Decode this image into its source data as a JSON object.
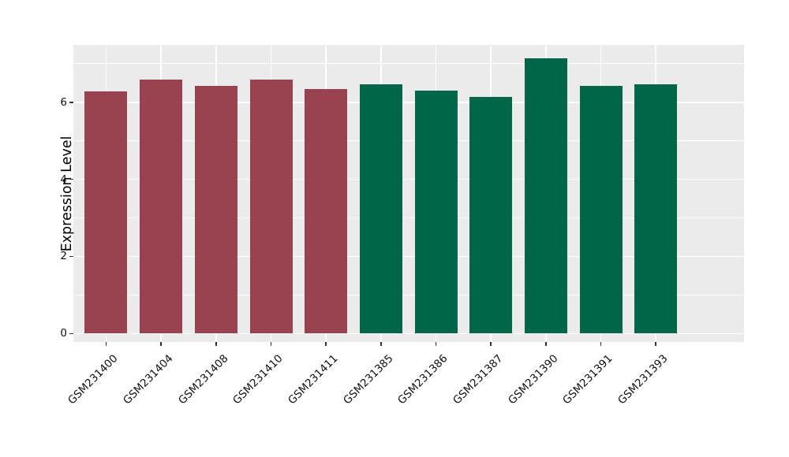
{
  "chart_data": {
    "type": "bar",
    "title": "",
    "xlabel": "",
    "ylabel": "Expression Level",
    "categories": [
      "GSM231400",
      "GSM231404",
      "GSM231408",
      "GSM231410",
      "GSM231411",
      "GSM231385",
      "GSM231386",
      "GSM231387",
      "GSM231390",
      "GSM231391",
      "GSM231393"
    ],
    "values": [
      6.28,
      6.6,
      6.42,
      6.6,
      6.35,
      6.47,
      6.3,
      6.14,
      7.15,
      6.42,
      6.47
    ],
    "bar_colors": [
      "#9A4350",
      "#9A4350",
      "#9A4350",
      "#9A4350",
      "#9A4350",
      "#006647",
      "#006647",
      "#006647",
      "#006647",
      "#006647",
      "#006647"
    ],
    "groups": [
      {
        "name": "group-1",
        "color": "#9A4350",
        "members": [
          "GSM231400",
          "GSM231404",
          "GSM231408",
          "GSM231410",
          "GSM231411"
        ]
      },
      {
        "name": "group-2",
        "color": "#006647",
        "members": [
          "GSM231385",
          "GSM231386",
          "GSM231387",
          "GSM231390",
          "GSM231391",
          "GSM231393"
        ]
      }
    ],
    "yticks": [
      0,
      2,
      4,
      6
    ],
    "ytick_labels": [
      "0",
      "2",
      "4",
      "6"
    ],
    "minor_ygrid": [
      1,
      3,
      5,
      7
    ],
    "ylim": [
      -0.225,
      7.49
    ],
    "grid": true,
    "legend": false,
    "colors": {
      "panel_bg": "#EBEBEB",
      "grid": "#FFFFFF",
      "tick_mark": "#333333",
      "axis_text": "#111111",
      "axis_title": "#000000",
      "page_bg": "#FFFFFF"
    }
  }
}
